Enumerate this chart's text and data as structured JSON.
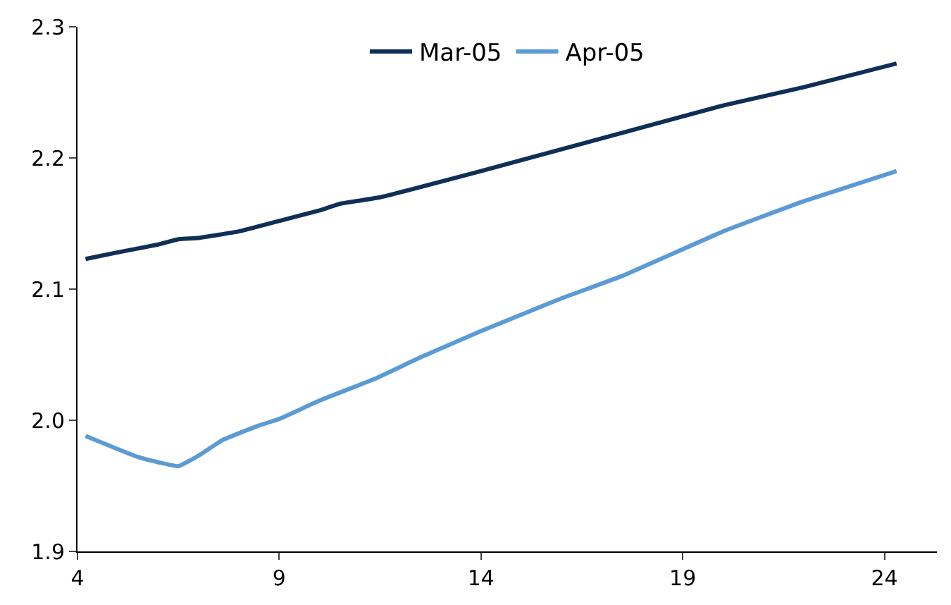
{
  "chart_data": {
    "type": "line",
    "series": [
      {
        "name": "Mar-05",
        "color": "#0f2f57",
        "x": [
          4.2,
          5,
          6,
          6.5,
          7,
          8,
          9,
          10,
          10.5,
          11.5,
          14,
          17,
          20,
          22,
          24.3
        ],
        "values": [
          2.123,
          2.128,
          2.134,
          2.138,
          2.139,
          2.144,
          2.152,
          2.16,
          2.165,
          2.17,
          2.19,
          2.215,
          2.24,
          2.254,
          2.272
        ]
      },
      {
        "name": "Apr-05",
        "color": "#5b9bd5",
        "x": [
          4.2,
          5,
          5.5,
          6,
          6.5,
          7,
          7.6,
          8.5,
          9,
          10,
          11.4,
          12.5,
          14,
          16,
          17.5,
          20,
          22,
          24.3
        ],
        "values": [
          1.988,
          1.978,
          1.972,
          1.968,
          1.965,
          1.973,
          1.985,
          1.996,
          2.001,
          2.015,
          2.032,
          2.048,
          2.068,
          2.093,
          2.11,
          2.144,
          2.167,
          2.19
        ]
      }
    ],
    "xlim": [
      4,
      25.3
    ],
    "xticks": [
      4,
      9,
      14,
      19,
      24
    ],
    "ylim": [
      1.9,
      2.3
    ],
    "yticks": [
      1.9,
      {
        "value": 2.0,
        "label": "2.0"
      },
      2.1,
      2.2,
      2.3
    ],
    "legend": "top",
    "marker": "none",
    "line_style": "solid"
  }
}
